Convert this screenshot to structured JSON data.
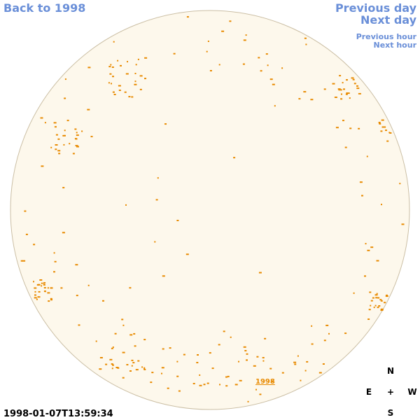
{
  "navigation": {
    "back": "Back to 1998",
    "previous_day": "Previous day",
    "next_day": "Next day",
    "previous_hour": "Previous hour",
    "next_hour": "Next hour"
  },
  "disk_label": "1998",
  "compass": {
    "north": "N",
    "east": "E",
    "center": "+",
    "west": "W",
    "south": "S"
  },
  "timestamp": "1998-01-07T13:59:34"
}
